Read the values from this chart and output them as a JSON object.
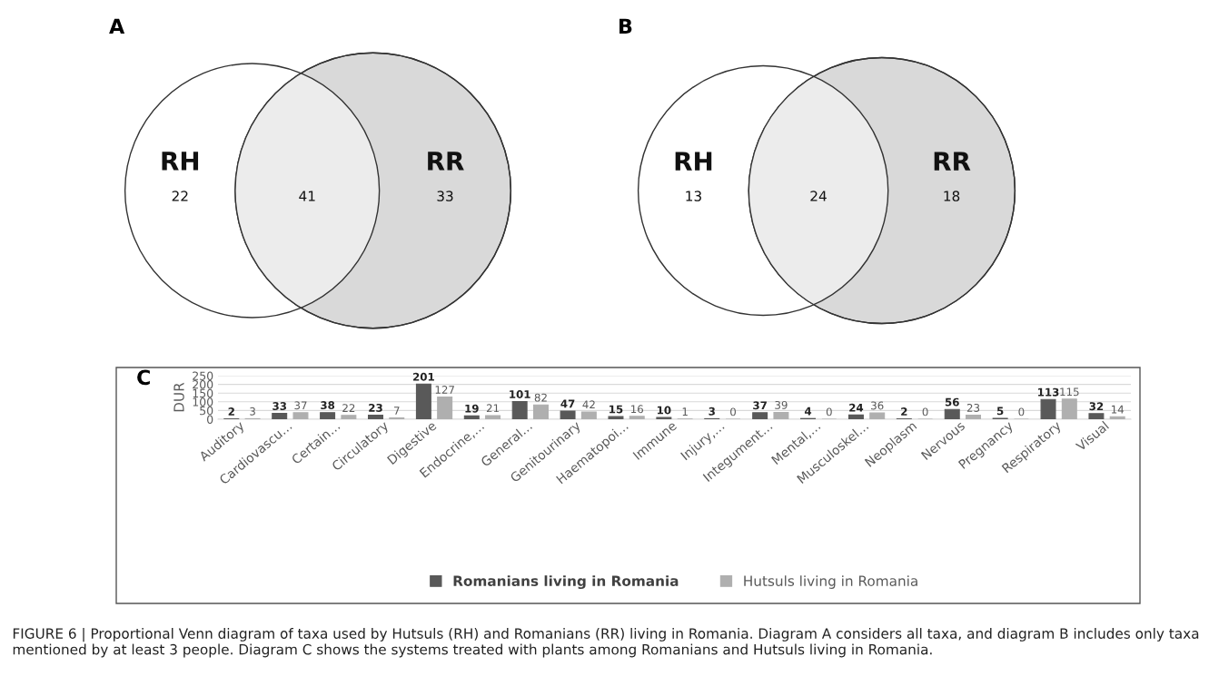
{
  "chart_data": [
    {
      "type": "other",
      "title": "A",
      "categories": [
        "RH",
        null,
        "RR"
      ],
      "values": [
        22,
        41,
        33
      ],
      "colors": [
        "#ffffff",
        "#ececec",
        "#d9d9d9"
      ],
      "data_labels": true
    },
    {
      "type": "other",
      "title": "B",
      "categories": [
        "RH",
        null,
        "RR"
      ],
      "values": [
        13,
        24,
        18
      ],
      "colors": [
        "#ffffff",
        "#ececec",
        "#d9d9d9"
      ],
      "data_labels": true
    },
    {
      "type": "bar",
      "title": "C",
      "ylabel": "DUR",
      "categories": [
        "Auditory",
        "Cardiovascu…",
        "Certain…",
        "Circulatory",
        "Digestive",
        "Endocrine,…",
        "General…",
        "Genitourinary",
        "Haematopoi…",
        "Immune",
        "Injury,…",
        "Integument…",
        "Mental,…",
        "Musculoskel…",
        "Neoplasm",
        "Nervous",
        "Pregnancy",
        "Respiratory",
        "Visual"
      ],
      "series": [
        {
          "name": "Romanians living in Romania",
          "color": "#595959",
          "values": [
            2,
            33,
            38,
            23,
            201,
            19,
            101,
            47,
            15,
            10,
            3,
            37,
            4,
            24,
            2,
            56,
            5,
            113,
            32
          ]
        },
        {
          "name": "Hutsuls living in Romania",
          "color": "#afafaf",
          "values": [
            3,
            37,
            22,
            7,
            127,
            21,
            82,
            42,
            16,
            1,
            0,
            39,
            0,
            36,
            0,
            23,
            0,
            115,
            14
          ]
        }
      ],
      "ylim": [
        0,
        250
      ],
      "yticks": [
        0,
        50,
        100,
        150,
        200,
        250
      ],
      "grid": "y",
      "legend": "bottom",
      "data_labels": true,
      "annotations": [
        "FIGURE 6 | Proportional Venn diagram of taxa used by Hutsuls (RH) and Romanians (RR) living in Romania. Diagram A considers all taxa, and diagram B includes only taxa mentioned by at least 3 people. Diagram C shows the systems treated with plants among Romanians and Hutsuls living in Romania."
      ]
    }
  ]
}
